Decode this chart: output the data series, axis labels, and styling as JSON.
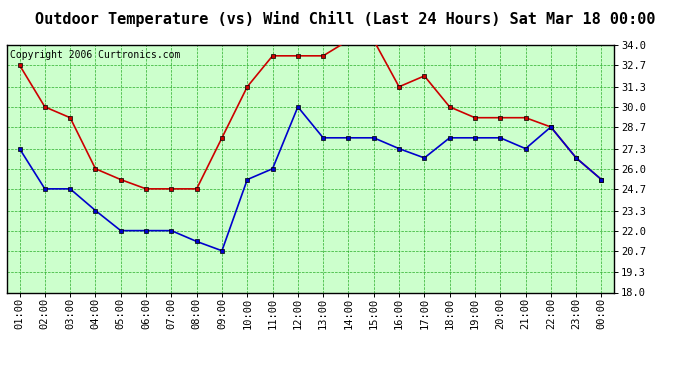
{
  "title": "Outdoor Temperature (vs) Wind Chill (Last 24 Hours) Sat Mar 18 00:00",
  "copyright": "Copyright 2006 Curtronics.com",
  "x_labels": [
    "01:00",
    "02:00",
    "03:00",
    "04:00",
    "05:00",
    "06:00",
    "07:00",
    "08:00",
    "09:00",
    "10:00",
    "11:00",
    "12:00",
    "13:00",
    "14:00",
    "15:00",
    "16:00",
    "17:00",
    "18:00",
    "19:00",
    "20:00",
    "21:00",
    "22:00",
    "23:00",
    "00:00"
  ],
  "red_temp": [
    32.7,
    30.0,
    29.3,
    26.0,
    25.3,
    24.7,
    24.7,
    24.7,
    28.0,
    31.3,
    33.3,
    33.3,
    33.3,
    34.3,
    34.3,
    31.3,
    32.0,
    30.0,
    29.3,
    29.3,
    29.3,
    28.7,
    26.7,
    25.3
  ],
  "blue_wc": [
    27.3,
    24.7,
    24.7,
    23.3,
    22.0,
    22.0,
    22.0,
    21.3,
    20.7,
    25.3,
    26.0,
    30.0,
    28.0,
    28.0,
    28.0,
    27.3,
    26.7,
    28.0,
    28.0,
    28.0,
    27.3,
    28.7,
    26.7,
    25.3
  ],
  "red_color": "#cc0000",
  "blue_color": "#0000cc",
  "fig_bg": "#ffffff",
  "plot_bg": "#ccffcc",
  "grid_color_solid": "#009900",
  "grid_color_dash": "#009900",
  "border_color": "#000000",
  "ylim_min": 18.0,
  "ylim_max": 34.0,
  "yticks": [
    18.0,
    19.3,
    20.7,
    22.0,
    23.3,
    24.7,
    26.0,
    27.3,
    28.7,
    30.0,
    31.3,
    32.7,
    34.0
  ],
  "title_fontsize": 11,
  "copyright_fontsize": 7,
  "tick_fontsize": 7.5,
  "marker": "s",
  "marker_size": 3,
  "linewidth": 1.2
}
